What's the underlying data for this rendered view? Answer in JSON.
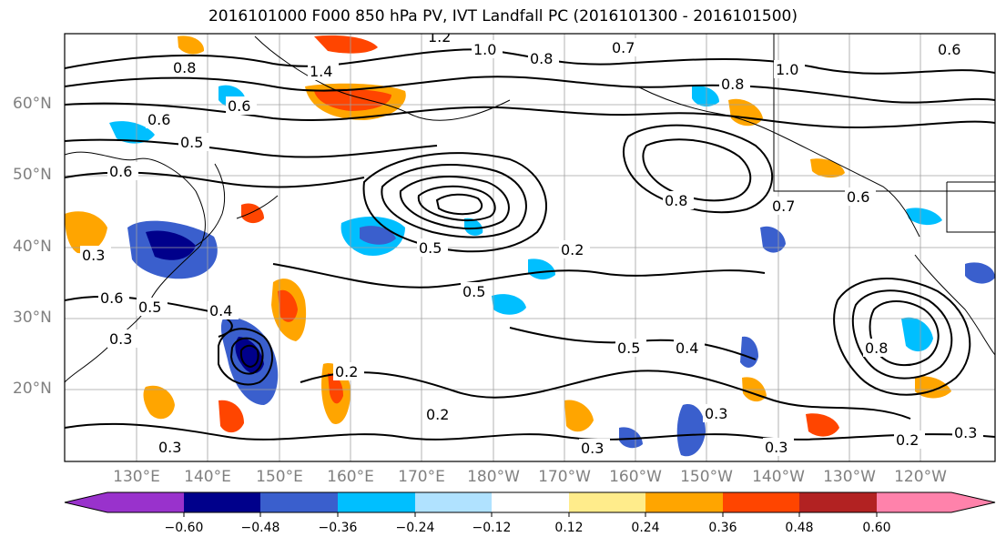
{
  "title": "2016101000 F000 850 hPa PV, IVT Landfall PC (2016101300 - 2016101500)",
  "lat_labels": [
    "60°N",
    "50°N",
    "40°N",
    "30°N",
    "20°N"
  ],
  "lon_labels": [
    "130°E",
    "140°E",
    "150°E",
    "160°E",
    "170°E",
    "180°W",
    "170°W",
    "160°W",
    "150°W",
    "140°W",
    "130°W",
    "120°W"
  ],
  "colorbar": {
    "ticks": [
      "−0.60",
      "−0.48",
      "−0.36",
      "−0.24",
      "−0.12",
      "0.12",
      "0.24",
      "0.36",
      "0.48",
      "0.60"
    ],
    "colors": [
      "#9932cc",
      "#00008b",
      "#3a5fcd",
      "#00bfff",
      "#b0e2ff",
      "#ffffff",
      "#ffec8b",
      "#ffa500",
      "#ff4500",
      "#b22222",
      "#ff82ab"
    ]
  },
  "contour_labels": [
    "1.0",
    "0.8",
    "1.2",
    "0.6",
    "1.4",
    "0.8",
    "0.6",
    "0.5",
    "0.6",
    "0.5",
    "0.3",
    "0.5",
    "0.2",
    "0.5",
    "0.6",
    "0.5",
    "0.4",
    "0.3",
    "0.8",
    "0.2",
    "0.2",
    "0.5",
    "0.4",
    "0.4",
    "0.3",
    "0.3",
    "0.3",
    "0.8",
    "0.6",
    "0.7",
    "1.0",
    "0.8",
    "0.2",
    "0.3",
    "0.8",
    "0.6",
    "0.7"
  ]
}
